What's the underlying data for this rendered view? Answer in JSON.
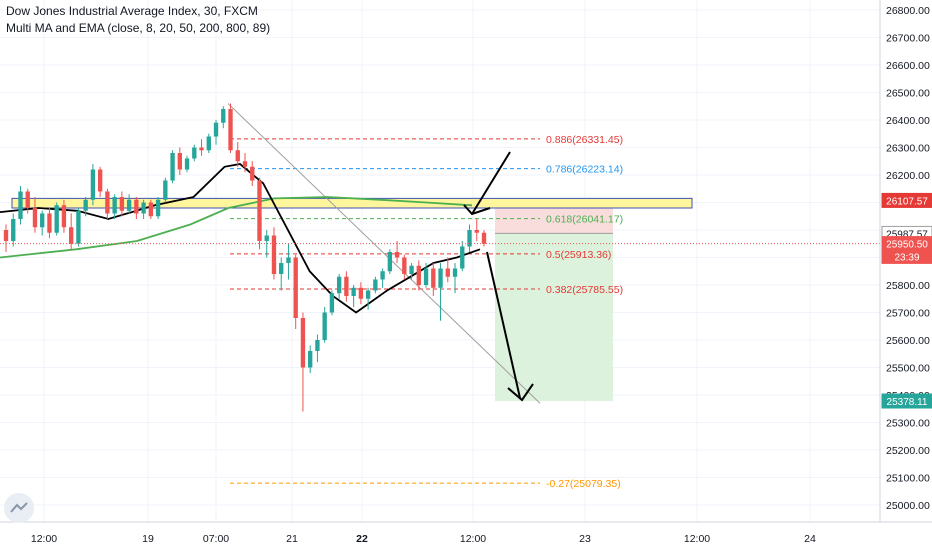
{
  "header": {
    "title": "Dow Jones Industrial Average Index, 30, FXCM",
    "indicator": "Multi MA and EMA (close, 8, 20, 50, 200, 800, 89)"
  },
  "colors": {
    "up": "#26a69a",
    "down": "#ef5350",
    "ma_fast": "#000000",
    "ma_slow": "#4caf50",
    "zone_fill": "#fff59d",
    "zone_border": "#3f51b5",
    "stop_fill": "#f8d7d7",
    "target_fill": "#d7f0d7",
    "fib_red": "#e53935",
    "fib_blue": "#2196f3",
    "fib_green": "#4caf50",
    "fib_orange": "#ff9800"
  },
  "chart_data": {
    "type": "candlestick",
    "y_axis": {
      "range": [
        24920,
        26860
      ],
      "ticks": [
        "25000.00",
        "25100.00",
        "25200.00",
        "25300.00",
        "25400.00",
        "25500.00",
        "25600.00",
        "25700.00",
        "25800.00",
        "25900.00",
        "26000.00",
        "26100.00",
        "26200.00",
        "26300.00",
        "26400.00",
        "26500.00",
        "26600.00",
        "26700.00",
        "26800.00"
      ]
    },
    "x_axis": {
      "ticks": [
        {
          "label": "12:00",
          "bold": false
        },
        {
          "label": "19",
          "bold": false
        },
        {
          "label": "07:00",
          "bold": false
        },
        {
          "label": "21",
          "bold": false
        },
        {
          "label": "22",
          "bold": true
        },
        {
          "label": "12:00",
          "bold": false
        },
        {
          "label": "23",
          "bold": false
        },
        {
          "label": "12:00",
          "bold": false
        },
        {
          "label": "24",
          "bold": false
        }
      ]
    },
    "fib_levels": [
      {
        "ratio": "0.886",
        "price": 26331.45,
        "label": "0.886(26331.45)",
        "color": "#e53935"
      },
      {
        "ratio": "0.786",
        "price": 26223.14,
        "label": "0.786(26223.14)",
        "color": "#2196f3"
      },
      {
        "ratio": "0.618",
        "price": 26041.17,
        "label": "0.618(26041.17)",
        "color": "#4caf50"
      },
      {
        "ratio": "0.5",
        "price": 25913.36,
        "label": "0.5(25913.36)",
        "color": "#e53935"
      },
      {
        "ratio": "0.382",
        "price": 25785.55,
        "label": "0.382(25785.55)",
        "color": "#e53935"
      },
      {
        "ratio": "-0.27",
        "price": 25079.35,
        "label": "-0.27(25079.35)",
        "color": "#ff9800"
      }
    ],
    "zone": {
      "low": 26080,
      "high": 26115
    },
    "trade": {
      "entry": 25987.57,
      "stop": 26107.57,
      "target": 25378.11
    },
    "price_tags": [
      {
        "value": "26107.57",
        "price": 26107.57,
        "bg": "#e53935",
        "color": "#ffffff"
      },
      {
        "value": "25987.57",
        "price": 25987.57,
        "bg": "#ffffff",
        "color": "#131722",
        "border": "#9e9e9e"
      },
      {
        "value": "25950.50",
        "price": 25950.5,
        "bg": "#ef5350",
        "color": "#ffffff"
      },
      {
        "value": "23:39",
        "price": 25904,
        "bg": "#ef5350",
        "color": "#ffffff"
      },
      {
        "value": "25378.11",
        "price": 25378.11,
        "bg": "#26a69a",
        "color": "#ffffff"
      }
    ],
    "current_price": 25950.5,
    "candles": [
      [
        26000,
        26020,
        25920,
        25960
      ],
      [
        25960,
        26060,
        25940,
        26040
      ],
      [
        26040,
        26160,
        26020,
        26140
      ],
      [
        26140,
        26150,
        26060,
        26080
      ],
      [
        26080,
        26120,
        25990,
        26010
      ],
      [
        26010,
        26070,
        25980,
        26060
      ],
      [
        26060,
        26080,
        25970,
        25990
      ],
      [
        25990,
        26100,
        25980,
        26090
      ],
      [
        26090,
        26110,
        25990,
        26010
      ],
      [
        26010,
        26060,
        25930,
        25950
      ],
      [
        25950,
        26080,
        25940,
        26070
      ],
      [
        26070,
        26120,
        26050,
        26110
      ],
      [
        26110,
        26240,
        26090,
        26220
      ],
      [
        26220,
        26230,
        26120,
        26140
      ],
      [
        26140,
        26150,
        26040,
        26060
      ],
      [
        26060,
        26130,
        26040,
        26120
      ],
      [
        26120,
        26140,
        26050,
        26070
      ],
      [
        26070,
        26130,
        26060,
        26110
      ],
      [
        26110,
        26120,
        26040,
        26060
      ],
      [
        26060,
        26110,
        26040,
        26100
      ],
      [
        26100,
        26110,
        26040,
        26050
      ],
      [
        26050,
        26120,
        26040,
        26110
      ],
      [
        26110,
        26190,
        26100,
        26180
      ],
      [
        26180,
        26290,
        26170,
        26280
      ],
      [
        26280,
        26300,
        26200,
        26220
      ],
      [
        26220,
        26270,
        26210,
        26260
      ],
      [
        26260,
        26310,
        26250,
        26300
      ],
      [
        26300,
        26330,
        26270,
        26290
      ],
      [
        26290,
        26350,
        26280,
        26340
      ],
      [
        26340,
        26400,
        26310,
        26390
      ],
      [
        26390,
        26450,
        26370,
        26440
      ],
      [
        26440,
        26460,
        26280,
        26290
      ],
      [
        26290,
        26320,
        26230,
        26250
      ],
      [
        26250,
        26280,
        26210,
        26230
      ],
      [
        26230,
        26250,
        26160,
        26180
      ],
      [
        26180,
        26190,
        25930,
        25960
      ],
      [
        25960,
        26000,
        25900,
        25980
      ],
      [
        25980,
        26010,
        25820,
        25840
      ],
      [
        25840,
        25900,
        25780,
        25880
      ],
      [
        25880,
        25950,
        25820,
        25900
      ],
      [
        25900,
        25910,
        25640,
        25680
      ],
      [
        25680,
        25700,
        25340,
        25500
      ],
      [
        25500,
        25580,
        25480,
        25560
      ],
      [
        25560,
        25620,
        25520,
        25600
      ],
      [
        25600,
        25720,
        25590,
        25700
      ],
      [
        25700,
        25780,
        25690,
        25770
      ],
      [
        25770,
        25840,
        25750,
        25830
      ],
      [
        25830,
        25850,
        25740,
        25760
      ],
      [
        25760,
        25800,
        25720,
        25790
      ],
      [
        25790,
        25810,
        25730,
        25750
      ],
      [
        25750,
        25790,
        25710,
        25780
      ],
      [
        25780,
        25830,
        25770,
        25820
      ],
      [
        25820,
        25860,
        25790,
        25850
      ],
      [
        25850,
        25930,
        25840,
        25920
      ],
      [
        25920,
        25960,
        25880,
        25900
      ],
      [
        25900,
        25910,
        25820,
        25840
      ],
      [
        25840,
        25880,
        25820,
        25870
      ],
      [
        25870,
        25890,
        25780,
        25800
      ],
      [
        25800,
        25880,
        25790,
        25860
      ],
      [
        25860,
        25880,
        25760,
        25790
      ],
      [
        25790,
        25880,
        25670,
        25860
      ],
      [
        25860,
        25900,
        25810,
        25830
      ],
      [
        25830,
        25880,
        25770,
        25860
      ],
      [
        25860,
        25960,
        25850,
        25940
      ],
      [
        25940,
        26020,
        25920,
        26000
      ],
      [
        26000,
        26040,
        25960,
        25990
      ],
      [
        25990,
        26000,
        25940,
        25950
      ]
    ],
    "ma_fast": [
      [
        26065,
        0.0
      ],
      [
        26080,
        0.05
      ],
      [
        26070,
        0.1
      ],
      [
        26040,
        0.14
      ],
      [
        26090,
        0.2
      ],
      [
        26120,
        0.25
      ],
      [
        26230,
        0.29
      ],
      [
        26240,
        0.31
      ],
      [
        26170,
        0.34
      ],
      [
        26010,
        0.37
      ],
      [
        25850,
        0.4
      ],
      [
        25760,
        0.43
      ],
      [
        25700,
        0.46
      ],
      [
        25780,
        0.5
      ],
      [
        25830,
        0.53
      ],
      [
        25880,
        0.56
      ],
      [
        25900,
        0.59
      ],
      [
        25930,
        0.62
      ]
    ],
    "ma_slow": [
      [
        25900,
        0.0
      ],
      [
        25930,
        0.1
      ],
      [
        25960,
        0.18
      ],
      [
        26020,
        0.25
      ],
      [
        26080,
        0.3
      ],
      [
        26115,
        0.36
      ],
      [
        26120,
        0.43
      ],
      [
        26110,
        0.5
      ],
      [
        26100,
        0.56
      ],
      [
        26090,
        0.62
      ]
    ]
  }
}
